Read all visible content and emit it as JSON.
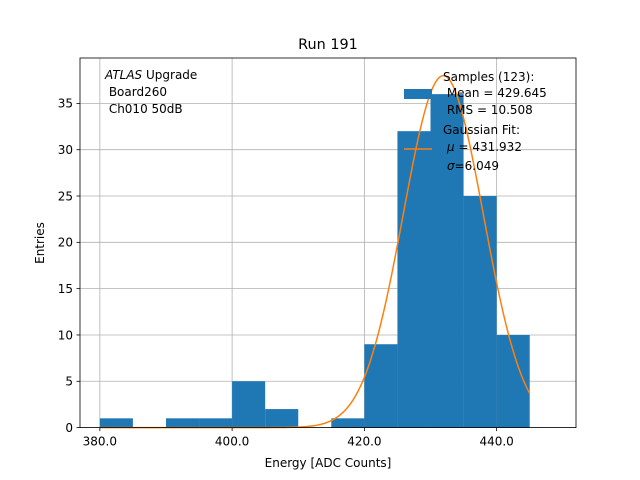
{
  "chart_data": {
    "type": "histogram",
    "title": "Run 191",
    "xlabel": "Energy [ADC Counts]",
    "ylabel": "Entries",
    "xlim": [
      377,
      452
    ],
    "ylim": [
      0,
      39.9
    ],
    "xticks": [
      380,
      400,
      420,
      440
    ],
    "xtick_labels": [
      "380.0",
      "400.0",
      "420.0",
      "440.0"
    ],
    "yticks": [
      0,
      5,
      10,
      15,
      20,
      25,
      30,
      35
    ],
    "ytick_labels": [
      "0",
      "5",
      "10",
      "15",
      "20",
      "25",
      "30",
      "35"
    ],
    "grid": true,
    "bins": [
      {
        "x0": 380,
        "x1": 385,
        "count": 1
      },
      {
        "x0": 385,
        "x1": 390,
        "count": 0
      },
      {
        "x0": 390,
        "x1": 395,
        "count": 1
      },
      {
        "x0": 395,
        "x1": 400,
        "count": 1
      },
      {
        "x0": 400,
        "x1": 405,
        "count": 5
      },
      {
        "x0": 405,
        "x1": 410,
        "count": 2
      },
      {
        "x0": 410,
        "x1": 415,
        "count": 0
      },
      {
        "x0": 415,
        "x1": 420,
        "count": 1
      },
      {
        "x0": 420,
        "x1": 425,
        "count": 9
      },
      {
        "x0": 425,
        "x1": 430,
        "count": 32
      },
      {
        "x0": 430,
        "x1": 435,
        "count": 36
      },
      {
        "x0": 435,
        "x1": 440,
        "count": 25
      },
      {
        "x0": 440,
        "x1": 445,
        "count": 10
      }
    ],
    "gaussian_fit": {
      "mu": 431.932,
      "sigma": 6.049,
      "amplitude": 38.0,
      "x_start": 380,
      "x_end": 445
    },
    "annotation": {
      "line1_italic": "ATLAS",
      "line1_rest": " Upgrade",
      "line2": " Board260",
      "line3": " Ch010 50dB"
    },
    "legend": {
      "samples_title": "Samples (123):",
      "samples_mean": " Mean = 429.645",
      "samples_rms": " RMS = 10.508",
      "fit_title": "Gaussian Fit:",
      "fit_mu_symbol": "μ",
      "fit_mu_text": " = 431.932",
      "fit_sigma_symbol": "σ",
      "fit_sigma_text": "=6.049"
    },
    "colors": {
      "bars": "#1f77b4",
      "fit": "#ff7f0e",
      "grid": "#b0b0b0",
      "axes": "#000000"
    }
  }
}
